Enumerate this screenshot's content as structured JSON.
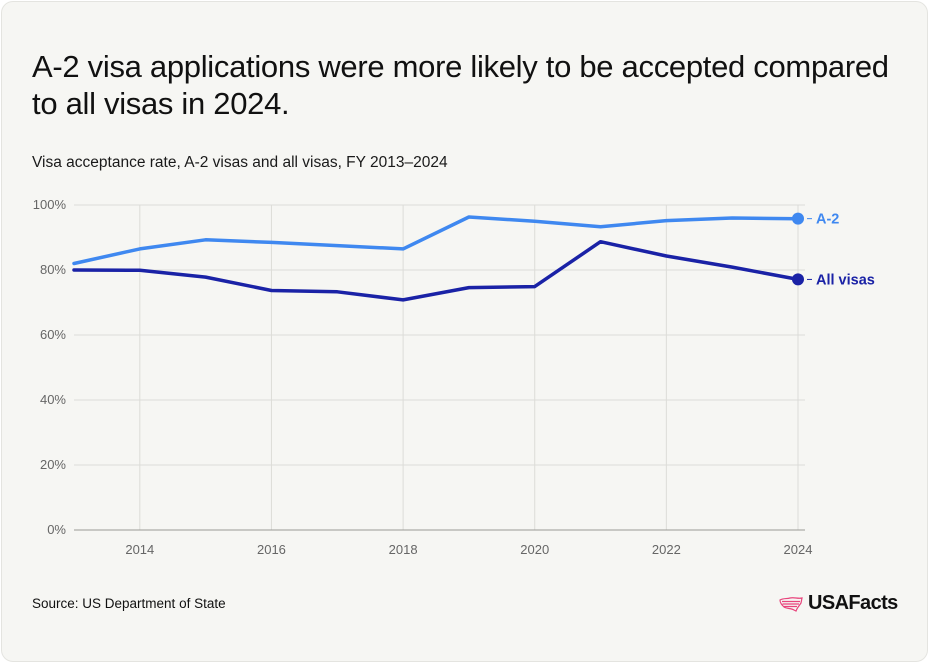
{
  "title": "A-2 visa applications were more likely to be accepted compared to all visas in 2024.",
  "subtitle": "Visa acceptance rate, A-2 visas and all visas, FY 2013–2024",
  "source": "Source: US Department of State",
  "logo": {
    "text": "USAFacts",
    "icon": "us-map-flag-icon"
  },
  "colors": {
    "background": "#f6f6f3",
    "grid": "#dcdcd8",
    "axis_text": "#666666",
    "a2": "#3f88f0",
    "all_visas": "#1a22a6"
  },
  "chart_data": {
    "type": "line",
    "x": [
      2013,
      2014,
      2015,
      2016,
      2017,
      2018,
      2019,
      2020,
      2021,
      2022,
      2023,
      2024
    ],
    "xlim": [
      2013,
      2024
    ],
    "ylim": [
      0,
      100
    ],
    "x_ticks": [
      2014,
      2016,
      2018,
      2020,
      2022,
      2024
    ],
    "x_tick_labels": [
      "2014",
      "2016",
      "2018",
      "2020",
      "2022",
      "2024"
    ],
    "y_ticks": [
      0,
      20,
      40,
      60,
      80,
      100
    ],
    "y_tick_labels": [
      "0%",
      "20%",
      "40%",
      "60%",
      "80%",
      "100%"
    ],
    "grid": true,
    "legend": "end-of-line labels",
    "series": [
      {
        "name": "A-2",
        "color": "#3f88f0",
        "values": [
          82,
          86.5,
          89.3,
          88.5,
          87.5,
          86.5,
          96.3,
          95,
          93.3,
          95.2,
          96,
          95.8
        ]
      },
      {
        "name": "All visas",
        "color": "#1a22a6",
        "values": [
          80,
          79.9,
          77.8,
          73.7,
          73.3,
          70.8,
          74.6,
          74.9,
          88.7,
          84.3,
          80.9,
          77.1
        ]
      }
    ]
  }
}
